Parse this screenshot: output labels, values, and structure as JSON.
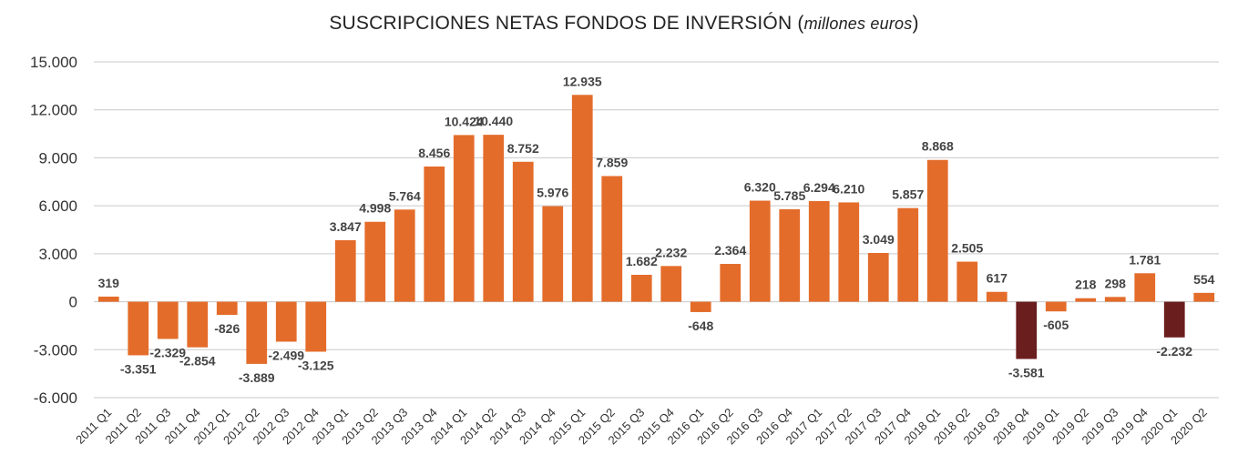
{
  "chart_data": {
    "type": "bar",
    "title": "SUSCRIPCIONES NETAS FONDOS DE INVERSIÓN",
    "title_unit": "millones euros",
    "xlabel": "",
    "ylabel": "",
    "ylim": [
      -6000,
      15000
    ],
    "yticks": [
      15000,
      12000,
      9000,
      6000,
      3000,
      0,
      -3000,
      -6000
    ],
    "ytick_labels": [
      "15.000",
      "12.000",
      "9.000",
      "6.000",
      "3.000",
      "0",
      "-3.000",
      "-6.000"
    ],
    "grid": true,
    "categories": [
      "2011 Q1",
      "2011 Q2",
      "2011 Q3",
      "2011 Q4",
      "2012 Q1",
      "2012 Q2",
      "2012 Q3",
      "2012 Q4",
      "2013 Q1",
      "2013 Q2",
      "2013 Q3",
      "2013 Q4",
      "2014 Q1",
      "2014 Q2",
      "2014 Q3",
      "2014 Q4",
      "2015 Q1",
      "2015 Q2",
      "2015 Q3",
      "2015 Q4",
      "2016 Q1",
      "2016 Q2",
      "2016 Q3",
      "2016 Q4",
      "2017 Q1",
      "2017 Q2",
      "2017 Q3",
      "2017 Q4",
      "2018 Q1",
      "2018 Q2",
      "2018 Q3",
      "2018 Q4",
      "2019 Q1",
      "2019 Q2",
      "2019 Q3",
      "2019 Q4",
      "2020 Q1",
      "2020 Q2"
    ],
    "values": [
      319,
      -3351,
      -2329,
      -2854,
      -826,
      -3889,
      -2499,
      -3125,
      3847,
      4998,
      5764,
      8456,
      10424,
      10440,
      8752,
      5976,
      12935,
      7859,
      1682,
      2232,
      -648,
      2364,
      6320,
      5785,
      6294,
      6210,
      3049,
      5857,
      8868,
      2505,
      617,
      -3581,
      -605,
      218,
      298,
      1781,
      -2232,
      554
    ],
    "value_labels": [
      "319",
      "-3.351",
      "-2.329",
      "-2.854",
      "-826",
      "-3.889",
      "-2.499",
      "-3.125",
      "3.847",
      "4.998",
      "5.764",
      "8.456",
      "10.424",
      "10.440",
      "8.752",
      "5.976",
      "12.935",
      "7.859",
      "1.682",
      "2.232",
      "-648",
      "2.364",
      "6.320",
      "5.785",
      "6.294",
      "6.210",
      "3.049",
      "5.857",
      "8.868",
      "2.505",
      "617",
      "-3.581",
      "-605",
      "218",
      "298",
      "1.781",
      "-2.232",
      "554"
    ],
    "colors": {
      "default": "#E46C2A",
      "highlight": "#6B1E1E",
      "highlight_categories": [
        "2018 Q4",
        "2020 Q1"
      ]
    }
  }
}
